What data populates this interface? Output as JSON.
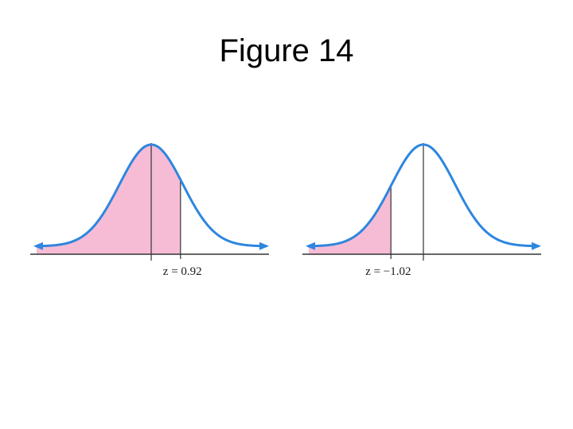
{
  "slide": {
    "title": "Figure 14"
  },
  "colors": {
    "curve": "#2e86de",
    "shade": "#f6bcd6",
    "axis": "#333333",
    "text": "#1a1a1a"
  },
  "panels": [
    {
      "shade": "left-of-z",
      "z_value": 0.92,
      "z_label": "z = 0.92"
    },
    {
      "shade": "left-of-z",
      "z_value": -1.02,
      "z_label": "z = −1.02"
    }
  ]
}
